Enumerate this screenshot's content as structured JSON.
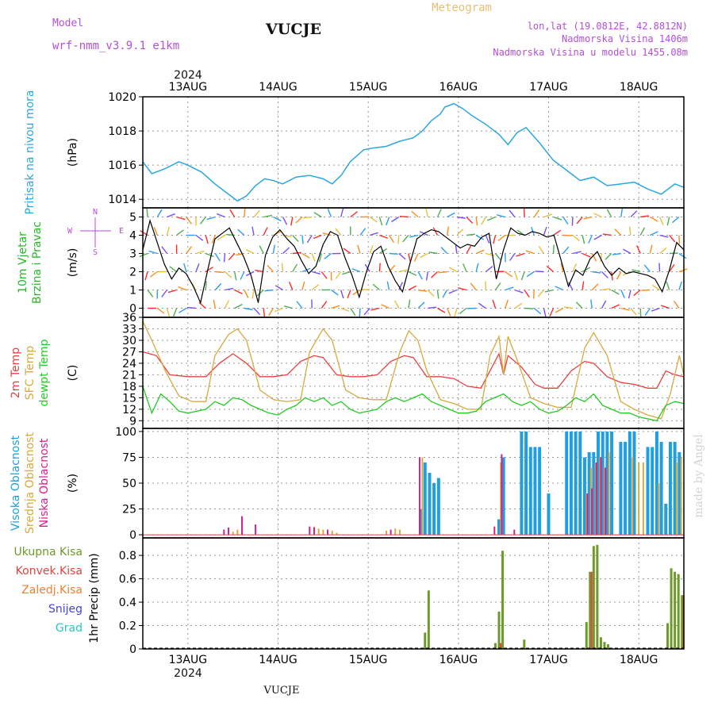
{
  "header": {
    "model_label": "Model",
    "model_value": "wrf-nmm_v3.9.1  e1km",
    "station": "VUCJE",
    "meteogram": "Meteogram",
    "lonlat": "lon,lat (19.0812E, 42.8812N)",
    "altitude": "Nadmorska Visina 1406m",
    "model_altitude": "Nadmorska Visina u modelu 1455.08m",
    "footer_station": "VUCJE",
    "credit": "made by Angel",
    "year": "2024"
  },
  "colors": {
    "pressure": "#2aa6e0",
    "wind_label": "#22bb22",
    "direction_label": "#b44fd8",
    "temp2m": "#e84040",
    "sfc": "#d9a840",
    "dewpt": "#22cc22",
    "high_cloud": "#1f9fe0",
    "mid_cloud": "#d9a840",
    "low_cloud": "#d81f8c",
    "total_precip": "#6e9a2a",
    "conv_precip": "#e84040",
    "frozen": "#f08030",
    "snow": "#4444dd",
    "hail": "#22c8c8",
    "header_purple": "#b44fd8",
    "header_gold": "#e8c070"
  },
  "chart_data": [
    {
      "type": "line",
      "id": "pressure",
      "label_lines": [
        "Pritisak na nivou mora"
      ],
      "unit": "(hPa)",
      "x_ticks": [
        "13AUG",
        "14AUG",
        "15AUG",
        "16AUG",
        "17AUG",
        "18AUG"
      ],
      "x_range_days": [
        12.5,
        18.5
      ],
      "ylim": [
        1013.5,
        1020
      ],
      "y_ticks": [
        1014,
        1016,
        1018,
        1020
      ],
      "grid": true,
      "series": [
        {
          "x": [
            12.5,
            12.6,
            12.75,
            12.9,
            13.0,
            13.15,
            13.3,
            13.45,
            13.55,
            13.65,
            13.75,
            13.85,
            13.95,
            14.05,
            14.2,
            14.35,
            14.5,
            14.6,
            14.7,
            14.8,
            14.95,
            15.05,
            15.2,
            15.35,
            15.5,
            15.6,
            15.7,
            15.8,
            15.85,
            15.95,
            16.05,
            16.15,
            16.3,
            16.45,
            16.55,
            16.65,
            16.75,
            16.9,
            17.05,
            17.2,
            17.35,
            17.5,
            17.65,
            17.8,
            17.95,
            18.1,
            18.25,
            18.4,
            18.5
          ],
          "y": [
            1016.2,
            1015.5,
            1015.8,
            1016.2,
            1016.0,
            1015.6,
            1014.9,
            1014.3,
            1013.9,
            1014.2,
            1014.8,
            1015.2,
            1015.1,
            1014.9,
            1015.3,
            1015.4,
            1015.2,
            1014.9,
            1015.4,
            1016.2,
            1016.9,
            1017.0,
            1017.1,
            1017.4,
            1017.6,
            1018.0,
            1018.6,
            1019.0,
            1019.4,
            1019.6,
            1019.3,
            1018.9,
            1018.4,
            1017.8,
            1017.2,
            1017.9,
            1018.2,
            1017.3,
            1016.3,
            1015.7,
            1015.1,
            1015.3,
            1014.8,
            1014.9,
            1015.0,
            1014.6,
            1014.3,
            1014.9,
            1014.7
          ]
        }
      ]
    },
    {
      "type": "scatter",
      "id": "wind",
      "label_lines": [
        "10m Vjetar",
        "Brzina i Pravac"
      ],
      "unit": "(m/s)",
      "ylim": [
        -0.5,
        5.5
      ],
      "y_ticks": [
        0,
        1,
        2,
        3,
        4,
        5
      ],
      "compass": [
        "N",
        "E",
        "W",
        "S"
      ],
      "grid": true,
      "series": [
        {
          "name": "speed",
          "x": [
            12.5,
            12.58,
            12.66,
            12.74,
            12.82,
            12.9,
            12.98,
            13.06,
            13.14,
            13.22,
            13.3,
            13.38,
            13.46,
            13.54,
            13.62,
            13.7,
            13.78,
            13.86,
            13.94,
            14.02,
            14.1,
            14.18,
            14.26,
            14.34,
            14.42,
            14.5,
            14.58,
            14.66,
            14.74,
            14.82,
            14.9,
            14.98,
            15.06,
            15.14,
            15.22,
            15.3,
            15.38,
            15.46,
            15.54,
            15.62,
            15.7,
            15.78,
            15.86,
            15.94,
            16.02,
            16.1,
            16.18,
            16.26,
            16.34,
            16.42,
            16.5,
            16.58,
            16.66,
            16.74,
            16.82,
            16.9,
            16.98,
            17.06,
            17.14,
            17.22,
            17.3,
            17.38,
            17.46,
            17.54,
            17.62,
            17.7,
            17.78,
            17.86,
            17.94,
            18.02,
            18.1,
            18.18,
            18.26,
            18.34,
            18.42,
            18.5
          ],
          "y": [
            3.2,
            4.8,
            3.6,
            2.4,
            1.6,
            2.2,
            1.9,
            1.2,
            0.3,
            2.1,
            3.8,
            4.1,
            4.4,
            3.6,
            2.8,
            1.8,
            0.3,
            2.9,
            3.9,
            4.3,
            3.8,
            3.4,
            2.6,
            1.9,
            2.3,
            3.5,
            4.2,
            4.0,
            2.8,
            1.8,
            0.6,
            2.0,
            3.1,
            3.4,
            2.3,
            1.5,
            0.9,
            2.4,
            3.8,
            4.1,
            4.3,
            4.2,
            3.9,
            3.6,
            3.3,
            3.5,
            3.4,
            3.9,
            4.1,
            1.6,
            3.2,
            4.4,
            4.1,
            4.0,
            4.2,
            4.1,
            3.9,
            4.0,
            2.6,
            1.2,
            2.1,
            1.8,
            2.7,
            3.1,
            2.3,
            1.8,
            2.2,
            1.9,
            2.0,
            1.9,
            1.8,
            1.6,
            0.9,
            2.1,
            3.6,
            3.2
          ]
        }
      ]
    },
    {
      "type": "line",
      "id": "temperature",
      "label_lines": [
        "2m Temp",
        "SFC Temp",
        "dewpt Temp"
      ],
      "unit": "(C)",
      "ylim": [
        7,
        36
      ],
      "y_ticks": [
        9,
        12,
        15,
        18,
        21,
        24,
        27,
        30,
        33,
        36
      ],
      "grid": true,
      "series": [
        {
          "name": "2m Temp",
          "x": [
            12.5,
            12.65,
            12.8,
            13.0,
            13.2,
            13.35,
            13.5,
            13.65,
            13.8,
            13.95,
            14.1,
            14.25,
            14.4,
            14.5,
            14.65,
            14.8,
            14.95,
            15.1,
            15.25,
            15.4,
            15.5,
            15.65,
            15.8,
            15.95,
            16.1,
            16.25,
            16.35,
            16.45,
            16.5,
            16.55,
            16.7,
            16.85,
            16.95,
            17.1,
            17.25,
            17.4,
            17.5,
            17.65,
            17.8,
            17.95,
            18.1,
            18.2,
            18.3,
            18.4,
            18.5
          ],
          "y": [
            27,
            26,
            21,
            20.5,
            20.5,
            24,
            26.5,
            24,
            20.5,
            20.5,
            21,
            24.5,
            26,
            25.5,
            21,
            20.5,
            20.5,
            21,
            24.5,
            26,
            25.5,
            20.5,
            20.5,
            20,
            18,
            17.5,
            22,
            26.5,
            21,
            26,
            23,
            18.5,
            17.5,
            17.5,
            22,
            24.5,
            24,
            20.5,
            19,
            18.5,
            17.5,
            17.5,
            22,
            21,
            20.5
          ]
        },
        {
          "name": "SFC Temp",
          "x": [
            12.5,
            12.6,
            12.75,
            12.9,
            13.05,
            13.2,
            13.3,
            13.45,
            13.55,
            13.65,
            13.8,
            13.95,
            14.1,
            14.25,
            14.35,
            14.5,
            14.6,
            14.75,
            14.9,
            15.05,
            15.2,
            15.35,
            15.45,
            15.55,
            15.65,
            15.8,
            15.95,
            16.1,
            16.25,
            16.35,
            16.45,
            16.5,
            16.55,
            16.65,
            16.8,
            16.95,
            17.1,
            17.25,
            17.4,
            17.5,
            17.65,
            17.8,
            17.95,
            18.1,
            18.25,
            18.35,
            18.45,
            18.5
          ],
          "y": [
            35,
            30,
            22,
            15.5,
            14,
            14,
            26,
            31.5,
            33,
            30,
            17,
            14.5,
            14,
            14.5,
            27,
            33,
            30,
            17,
            15,
            14.5,
            14.5,
            27,
            32.5,
            30,
            22,
            14.5,
            13.5,
            12,
            12,
            26,
            31,
            21,
            31,
            25,
            15,
            13.5,
            12.5,
            12.5,
            28,
            32,
            26,
            14,
            12,
            10.5,
            9.5,
            16,
            26,
            21
          ]
        },
        {
          "name": "dewpt Temp",
          "x": [
            12.5,
            12.6,
            12.7,
            12.8,
            12.9,
            13.0,
            13.1,
            13.2,
            13.3,
            13.4,
            13.5,
            13.6,
            13.7,
            13.8,
            13.9,
            14.0,
            14.1,
            14.2,
            14.3,
            14.4,
            14.5,
            14.6,
            14.7,
            14.8,
            14.9,
            15.0,
            15.1,
            15.2,
            15.3,
            15.4,
            15.5,
            15.6,
            15.7,
            15.8,
            15.9,
            16.0,
            16.1,
            16.2,
            16.3,
            16.4,
            16.5,
            16.6,
            16.7,
            16.8,
            16.9,
            17.0,
            17.1,
            17.2,
            17.3,
            17.4,
            17.5,
            17.6,
            17.7,
            17.8,
            17.9,
            18.0,
            18.1,
            18.2,
            18.3,
            18.4,
            18.5
          ],
          "y": [
            18,
            11,
            16,
            14,
            11.5,
            11,
            11.5,
            12,
            14,
            13,
            15,
            14.5,
            13,
            12,
            11,
            10.5,
            12,
            13,
            15,
            14,
            15,
            13,
            14,
            12,
            11,
            11.5,
            12,
            14,
            15,
            14,
            15,
            16,
            14,
            13,
            12,
            11,
            11,
            11.5,
            14,
            15,
            16,
            14,
            13,
            14,
            12,
            11,
            11.5,
            13,
            15,
            14,
            16,
            13,
            12,
            11,
            11,
            10,
            9.5,
            9,
            13,
            14,
            13.5
          ]
        }
      ]
    },
    {
      "type": "bar",
      "id": "cloud",
      "label_lines": [
        "Visoka Oblacnost",
        "Srednja Oblacnost",
        "Niska Oblacnost"
      ],
      "unit": "(%)",
      "ylim": [
        -3,
        103
      ],
      "y_ticks": [
        0,
        25,
        50,
        75,
        100
      ],
      "grid": true,
      "series": [
        {
          "name": "Visoka Oblacnost",
          "x": [
            15.58,
            15.63,
            15.68,
            15.73,
            15.78,
            16.45,
            16.5,
            16.7,
            16.75,
            16.8,
            16.85,
            16.9,
            17.0,
            17.2,
            17.25,
            17.3,
            17.35,
            17.4,
            17.45,
            17.5,
            17.55,
            17.6,
            17.65,
            17.7,
            17.8,
            17.85,
            17.9,
            17.95,
            18.1,
            18.15,
            18.2,
            18.25,
            18.3,
            18.35,
            18.4,
            18.45
          ],
          "y": [
            25,
            70,
            60,
            50,
            55,
            15,
            75,
            100,
            100,
            85,
            85,
            85,
            40,
            100,
            100,
            100,
            100,
            75,
            80,
            80,
            100,
            100,
            100,
            100,
            90,
            90,
            100,
            100,
            85,
            85,
            100,
            90,
            30,
            90,
            90,
            80
          ]
        },
        {
          "name": "Srednja Oblacnost",
          "x": [
            13.5,
            13.55,
            14.4,
            14.45,
            14.5,
            14.55,
            14.6,
            14.65,
            15.2,
            15.3,
            15.35,
            15.6,
            16.47,
            17.42,
            17.47,
            17.52,
            17.57,
            17.62,
            17.67,
            17.93,
            18.0,
            18.05,
            18.22,
            18.42,
            18.47
          ],
          "y": [
            3,
            5,
            8,
            6,
            5,
            3,
            4,
            2,
            4,
            6,
            5,
            75,
            70,
            40,
            65,
            70,
            75,
            65,
            80,
            75,
            70,
            70,
            50,
            70,
            75
          ]
        },
        {
          "name": "Niska Oblacnost",
          "x": [
            13.4,
            13.45,
            13.6,
            13.75,
            14.35,
            14.4,
            14.55,
            15.25,
            15.57,
            16.4,
            16.48,
            16.62,
            17.43,
            17.48,
            17.53,
            17.58,
            17.63
          ],
          "y": [
            5,
            7,
            18,
            10,
            8,
            7,
            5,
            5,
            75,
            8,
            78,
            5,
            40,
            45,
            70,
            75,
            65
          ]
        }
      ]
    },
    {
      "type": "bar",
      "id": "precip",
      "label_lines": [
        "Ukupna Kisa",
        "Konvek.Kisa",
        "Zaledj.Kisa",
        "Snijeg",
        "Grad"
      ],
      "ylabel": "1hr Precip (mm)",
      "ylim": [
        0,
        0.95
      ],
      "y_ticks": [
        0,
        0.2,
        0.4,
        0.6,
        0.8
      ],
      "grid": true,
      "series": [
        {
          "name": "Ukupna Kisa",
          "x": [
            15.63,
            15.67,
            16.41,
            16.45,
            16.49,
            16.73,
            17.42,
            17.46,
            17.5,
            17.54,
            17.58,
            17.62,
            17.66,
            18.32,
            18.36,
            18.4,
            18.44,
            18.48
          ],
          "y": [
            0.14,
            0.5,
            0.05,
            0.32,
            0.84,
            0.08,
            0.23,
            0.66,
            0.88,
            0.89,
            0.1,
            0.06,
            0.04,
            0.22,
            0.69,
            0.66,
            0.64,
            0.46
          ]
        },
        {
          "name": "Konvek.Kisa",
          "x": [
            16.45,
            17.46,
            18.48
          ],
          "y": [
            0.05,
            0.66,
            0.46
          ]
        }
      ]
    }
  ]
}
